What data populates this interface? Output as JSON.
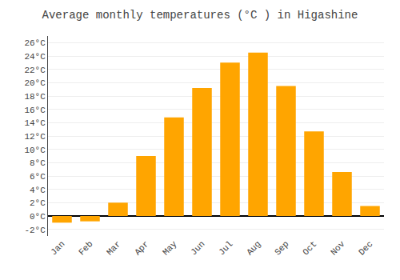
{
  "chart_data": {
    "type": "bar",
    "title": "Average monthly temperatures (°C ) in Higashine",
    "categories": [
      "Jan",
      "Feb",
      "Mar",
      "Apr",
      "May",
      "Jun",
      "Jul",
      "Aug",
      "Sep",
      "Oct",
      "Nov",
      "Dec"
    ],
    "values": [
      -1.0,
      -0.8,
      2.0,
      9.0,
      14.8,
      19.2,
      23.0,
      24.5,
      19.5,
      12.7,
      6.6,
      1.5
    ],
    "color": "#FFA500",
    "ylim": [
      -3,
      27
    ],
    "yticks": [
      {
        "value": -2,
        "label": "-2°C"
      },
      {
        "value": 0,
        "label": "0°C"
      },
      {
        "value": 2,
        "label": "2°C"
      },
      {
        "value": 4,
        "label": "4°C"
      },
      {
        "value": 6,
        "label": "6°C"
      },
      {
        "value": 8,
        "label": "8°C"
      },
      {
        "value": 10,
        "label": "10°C"
      },
      {
        "value": 12,
        "label": "12°C"
      },
      {
        "value": 14,
        "label": "14°C"
      },
      {
        "value": 16,
        "label": "16°C"
      },
      {
        "value": 18,
        "label": "18°C"
      },
      {
        "value": 20,
        "label": "20°C"
      },
      {
        "value": 22,
        "label": "22°C"
      },
      {
        "value": 24,
        "label": "24°C"
      },
      {
        "value": 26,
        "label": "26°C"
      }
    ],
    "grid": true
  }
}
